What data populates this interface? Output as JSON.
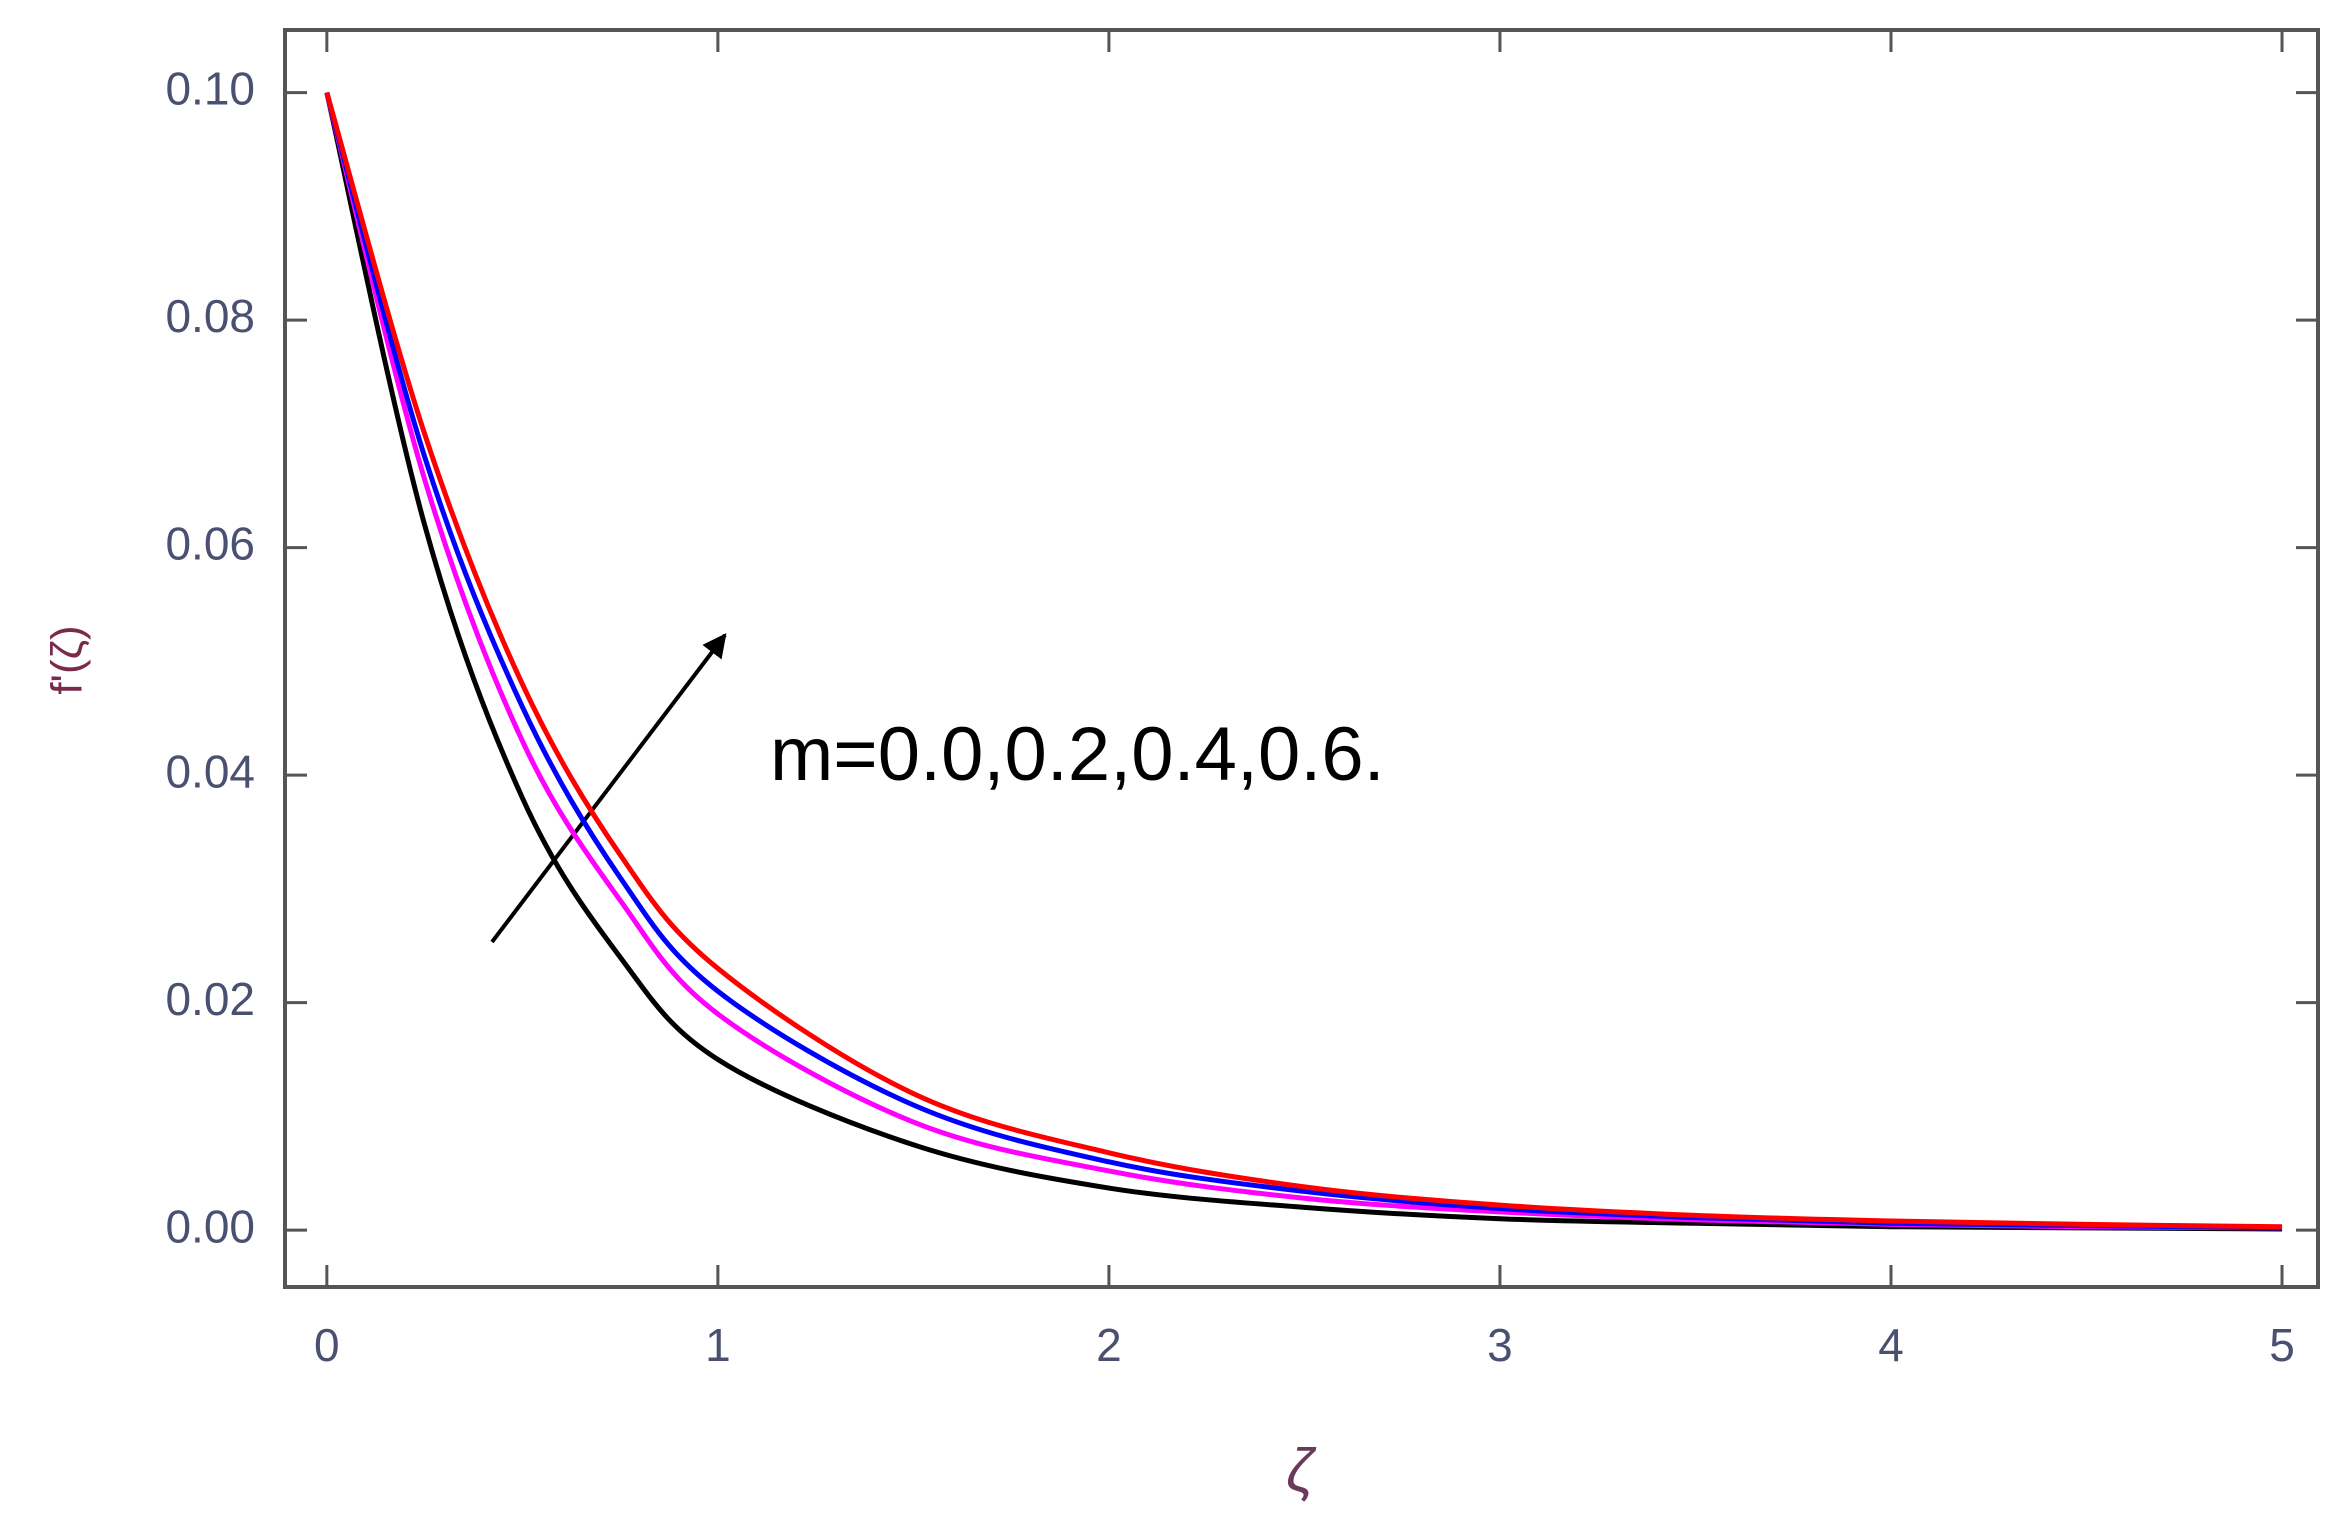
{
  "chart_data": {
    "type": "line",
    "annotation": "m=0.0,0.2,0.4,0.6.",
    "xlabel": "ζ",
    "ylabel": "f'(ζ)",
    "x": [
      0,
      0.25,
      0.5,
      0.75,
      1,
      1.5,
      2,
      2.5,
      3,
      3.5,
      4,
      4.5,
      5
    ],
    "series": [
      {
        "color": "#000000",
        "values": [
          0.1,
          0.062,
          0.038,
          0.024,
          0.015,
          0.0075,
          0.0037,
          0.002,
          0.001,
          0.0006,
          0.0003,
          0.0002,
          0.0001
        ]
      },
      {
        "color": "#ff00ff",
        "values": [
          0.1,
          0.066,
          0.043,
          0.029,
          0.019,
          0.0095,
          0.0052,
          0.0028,
          0.0016,
          0.0009,
          0.0005,
          0.0003,
          0.0002
        ]
      },
      {
        "color": "#0000ff",
        "values": [
          0.1,
          0.068,
          0.046,
          0.031,
          0.021,
          0.011,
          0.006,
          0.0034,
          0.0019,
          0.0011,
          0.0006,
          0.0004,
          0.0002
        ]
      },
      {
        "color": "#ff0000",
        "values": [
          0.1,
          0.07,
          0.048,
          0.033,
          0.023,
          0.012,
          0.0068,
          0.0038,
          0.0022,
          0.0013,
          0.0008,
          0.0005,
          0.0003
        ]
      }
    ],
    "xlim": [
      -0.107,
      5.092
    ],
    "ylim": [
      -0.005,
      0.1055
    ],
    "xticks": [
      0,
      1,
      2,
      3,
      4,
      5
    ],
    "yticks": [
      {
        "value": 0,
        "label": "0.00"
      },
      {
        "value": 0.02,
        "label": "0.02"
      },
      {
        "value": 0.04,
        "label": "0.04"
      },
      {
        "value": 0.06,
        "label": "0.06"
      },
      {
        "value": 0.08,
        "label": "0.08"
      },
      {
        "value": 0.1,
        "label": "0.10"
      }
    ]
  }
}
